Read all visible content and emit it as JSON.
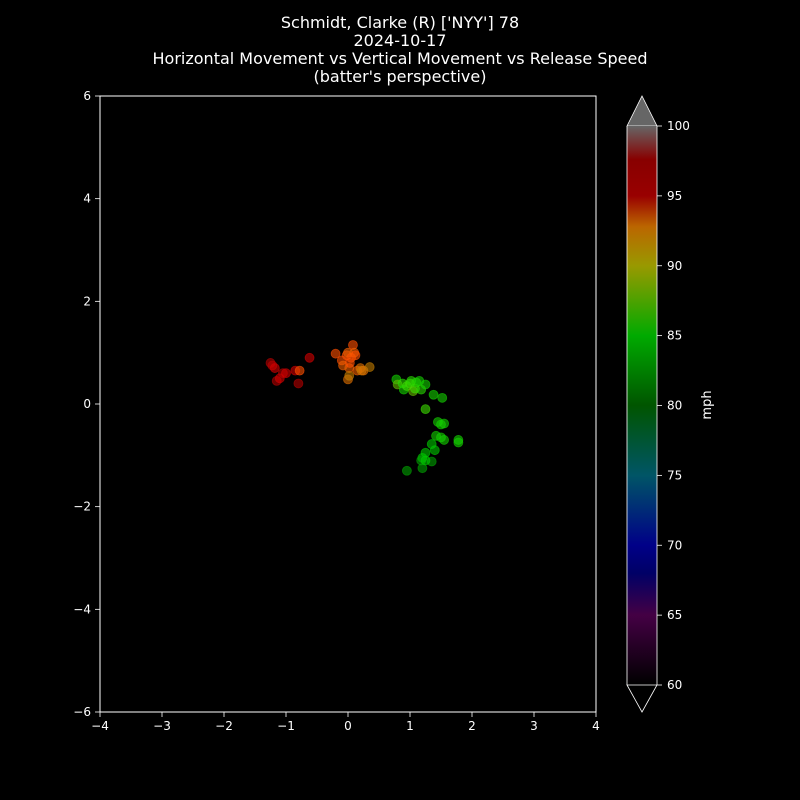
{
  "chart_data": {
    "type": "scatter",
    "title_lines": [
      "Schmidt, Clarke (R) ['NYY'] 78",
      "2024-10-17",
      "Horizontal Movement vs Vertical Movement vs Release Speed",
      "(batter's perspective)"
    ],
    "xlabel": "",
    "ylabel": "",
    "xlim": [
      -4,
      4
    ],
    "ylim": [
      -6,
      6
    ],
    "xticks": [
      -4,
      -3,
      -2,
      -1,
      0,
      1,
      2,
      3,
      4
    ],
    "yticks": [
      -6,
      -4,
      -2,
      0,
      2,
      4,
      6
    ],
    "xtick_labels": [
      "−4",
      "−3",
      "−2",
      "−1",
      "0",
      "1",
      "2",
      "3",
      "4"
    ],
    "ytick_labels": [
      "−6",
      "−4",
      "−2",
      "0",
      "2",
      "4",
      "6"
    ],
    "grid": false,
    "colorbar": {
      "label": "mph",
      "min": 60,
      "max": 100,
      "ticks": [
        60,
        65,
        70,
        75,
        80,
        85,
        90,
        95,
        100
      ],
      "tick_labels": [
        "60",
        "65",
        "70",
        "75",
        "80",
        "85",
        "90",
        "95",
        "100"
      ],
      "extend": "both"
    },
    "points": [
      {
        "x": -1.25,
        "y": 0.8,
        "c": 96
      },
      {
        "x": -1.22,
        "y": 0.75,
        "c": 96
      },
      {
        "x": -1.18,
        "y": 0.7,
        "c": 95
      },
      {
        "x": -1.15,
        "y": 0.45,
        "c": 96
      },
      {
        "x": -1.1,
        "y": 0.5,
        "c": 95
      },
      {
        "x": -1.05,
        "y": 0.6,
        "c": 96
      },
      {
        "x": -1.0,
        "y": 0.6,
        "c": 95
      },
      {
        "x": -0.85,
        "y": 0.65,
        "c": 95
      },
      {
        "x": -0.8,
        "y": 0.4,
        "c": 96
      },
      {
        "x": -0.78,
        "y": 0.65,
        "c": 93
      },
      {
        "x": -0.62,
        "y": 0.9,
        "c": 95
      },
      {
        "x": -0.2,
        "y": 0.98,
        "c": 93
      },
      {
        "x": -0.1,
        "y": 0.85,
        "c": 93
      },
      {
        "x": -0.08,
        "y": 0.75,
        "c": 92
      },
      {
        "x": -0.02,
        "y": 0.95,
        "c": 93
      },
      {
        "x": 0.0,
        "y": 1.0,
        "c": 92
      },
      {
        "x": 0.02,
        "y": 0.7,
        "c": 92
      },
      {
        "x": 0.03,
        "y": 0.8,
        "c": 93
      },
      {
        "x": 0.05,
        "y": 0.9,
        "c": 93
      },
      {
        "x": 0.08,
        "y": 1.15,
        "c": 93
      },
      {
        "x": 0.1,
        "y": 1.0,
        "c": 92
      },
      {
        "x": 0.12,
        "y": 0.95,
        "c": 93
      },
      {
        "x": 0.15,
        "y": 0.65,
        "c": 92
      },
      {
        "x": 0.2,
        "y": 0.7,
        "c": 91
      },
      {
        "x": 0.22,
        "y": 0.65,
        "c": 90
      },
      {
        "x": 0.25,
        "y": 0.65,
        "c": 91
      },
      {
        "x": 0.0,
        "y": 0.48,
        "c": 91
      },
      {
        "x": 0.02,
        "y": 0.55,
        "c": 90
      },
      {
        "x": 0.35,
        "y": 0.72,
        "c": 90
      },
      {
        "x": 0.78,
        "y": 0.48,
        "c": 84
      },
      {
        "x": 0.8,
        "y": 0.38,
        "c": 87
      },
      {
        "x": 0.88,
        "y": 0.4,
        "c": 85
      },
      {
        "x": 0.9,
        "y": 0.28,
        "c": 84
      },
      {
        "x": 0.95,
        "y": 0.35,
        "c": 86
      },
      {
        "x": 1.0,
        "y": 0.4,
        "c": 86
      },
      {
        "x": 1.02,
        "y": 0.45,
        "c": 85
      },
      {
        "x": 1.05,
        "y": 0.25,
        "c": 87
      },
      {
        "x": 1.08,
        "y": 0.3,
        "c": 86
      },
      {
        "x": 1.1,
        "y": 0.42,
        "c": 85
      },
      {
        "x": 1.15,
        "y": 0.45,
        "c": 84
      },
      {
        "x": 1.18,
        "y": 0.28,
        "c": 85
      },
      {
        "x": 1.25,
        "y": 0.38,
        "c": 84
      },
      {
        "x": 1.38,
        "y": 0.18,
        "c": 84
      },
      {
        "x": 1.52,
        "y": 0.12,
        "c": 84
      },
      {
        "x": 1.25,
        "y": -0.1,
        "c": 86
      },
      {
        "x": 1.45,
        "y": -0.35,
        "c": 84
      },
      {
        "x": 1.5,
        "y": -0.4,
        "c": 84
      },
      {
        "x": 1.55,
        "y": -0.38,
        "c": 84
      },
      {
        "x": 1.42,
        "y": -0.62,
        "c": 84
      },
      {
        "x": 1.5,
        "y": -0.65,
        "c": 84
      },
      {
        "x": 1.55,
        "y": -0.7,
        "c": 84
      },
      {
        "x": 1.78,
        "y": -0.7,
        "c": 84
      },
      {
        "x": 1.78,
        "y": -0.75,
        "c": 84
      },
      {
        "x": 1.35,
        "y": -0.78,
        "c": 83
      },
      {
        "x": 1.4,
        "y": -0.9,
        "c": 83
      },
      {
        "x": 1.25,
        "y": -0.95,
        "c": 83
      },
      {
        "x": 1.2,
        "y": -1.05,
        "c": 83
      },
      {
        "x": 1.18,
        "y": -1.1,
        "c": 82
      },
      {
        "x": 1.35,
        "y": -1.12,
        "c": 82
      },
      {
        "x": 1.2,
        "y": -1.25,
        "c": 82
      },
      {
        "x": 0.95,
        "y": -1.3,
        "c": 82
      },
      {
        "x": 1.25,
        "y": -1.1,
        "c": 83
      }
    ]
  }
}
